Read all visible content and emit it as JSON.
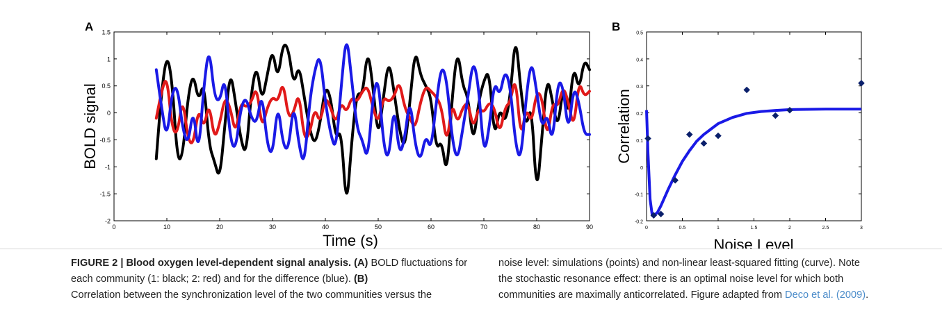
{
  "figure": {
    "panel_a_label": "A",
    "panel_b_label": "B"
  },
  "caption": {
    "fig_label": "FIGURE 2 | Blood oxygen level-dependent signal analysis.",
    "a_tag": "(A)",
    "a_text_1": " BOLD fluctuations for each community (1: black; 2: red) and for the difference (blue). ",
    "b_tag": "(B)",
    "b_text_1": " Correlation between the synchronization level of the two communities versus the",
    "right_text": "noise level: simulations (points) and non-linear least-squared fitting (curve). Note the stochastic resonance effect: there is an optimal noise level for which both communities are maximally anticorrelated. Figure adapted from ",
    "ref_link": "Deco et al. (2009)",
    "end": "."
  },
  "chart_data": [
    {
      "type": "line",
      "panel": "A",
      "xlabel": "Time (s)",
      "ylabel": "BOLD signal",
      "xlim": [
        0,
        90
      ],
      "ylim": [
        -2,
        1.5
      ],
      "xticks": [
        0,
        10,
        20,
        30,
        40,
        50,
        60,
        70,
        80,
        90
      ],
      "yticks": [
        -2,
        -1.5,
        -1,
        -0.5,
        0,
        0.5,
        1,
        1.5
      ],
      "x_range_data": [
        8,
        90
      ],
      "series": [
        {
          "color": "#000000",
          "x": [
            8,
            9,
            10,
            11,
            12,
            13,
            14,
            15,
            16,
            17,
            18,
            19,
            20,
            21,
            22,
            23,
            24,
            25,
            26,
            27,
            28,
            29,
            30,
            31,
            32,
            33,
            34,
            35,
            36,
            37,
            38,
            39,
            40,
            41,
            42,
            43,
            44,
            45,
            46,
            47,
            48,
            49,
            50,
            51,
            52,
            53,
            54,
            55,
            56,
            57,
            58,
            59,
            60,
            61,
            62,
            63,
            64,
            65,
            66,
            67,
            68,
            69,
            70,
            71,
            72,
            73,
            74,
            75,
            76,
            77,
            78,
            79,
            80,
            81,
            82,
            83,
            84,
            85,
            86,
            87,
            88,
            89,
            90
          ],
          "y": [
            -0.85,
            0.4,
            1.1,
            0.6,
            -0.9,
            -0.8,
            0.3,
            0.75,
            0.2,
            0.6,
            -0.6,
            -0.9,
            -1.25,
            -0.2,
            0.8,
            0.2,
            -0.5,
            -0.8,
            0.4,
            0.9,
            0.2,
            0.7,
            1.2,
            0.6,
            1.3,
            1.2,
            0.5,
            0.9,
            0.3,
            -0.3,
            -0.6,
            -0.2,
            0.5,
            0.3,
            -0.5,
            -0.3,
            -1.85,
            -0.5,
            0.4,
            0.3,
            1.2,
            0.5,
            -0.5,
            0.3,
            1.0,
            0.4,
            -0.3,
            -0.7,
            0.2,
            1.2,
            0.7,
            0.5,
            0.3,
            -0.7,
            -0.5,
            -1.2,
            0.3,
            1.2,
            0.5,
            0.3,
            -0.6,
            0.2,
            0.6,
            0.8,
            -0.5,
            0.1,
            -0.2,
            0.3,
            1.5,
            0.4,
            -0.3,
            0.2,
            -1.6,
            -0.4,
            0.7,
            0.2,
            -0.3,
            0.5,
            -0.1,
            0.9,
            0.4,
            1.0,
            0.8
          ]
        },
        {
          "color": "#e11a1a",
          "x": [
            8,
            9,
            10,
            11,
            12,
            13,
            14,
            15,
            16,
            17,
            18,
            19,
            20,
            21,
            22,
            23,
            24,
            25,
            26,
            27,
            28,
            29,
            30,
            31,
            32,
            33,
            34,
            35,
            36,
            37,
            38,
            39,
            40,
            41,
            42,
            43,
            44,
            45,
            46,
            47,
            48,
            49,
            50,
            51,
            52,
            53,
            54,
            55,
            56,
            57,
            58,
            59,
            60,
            61,
            62,
            63,
            64,
            65,
            66,
            67,
            68,
            69,
            70,
            71,
            72,
            73,
            74,
            75,
            76,
            77,
            78,
            79,
            80,
            81,
            82,
            83,
            84,
            85,
            86,
            87,
            88,
            89,
            90
          ],
          "y": [
            -0.1,
            0.4,
            0.7,
            -0.3,
            -0.4,
            0.3,
            -0.5,
            -0.6,
            0.1,
            -0.3,
            0.2,
            -0.5,
            -0.2,
            0.3,
            0.1,
            -0.4,
            0.2,
            0.1,
            0.2,
            0.5,
            -0.3,
            0.1,
            0.3,
            0.2,
            0.6,
            -0.1,
            0.0,
            0.4,
            -0.5,
            -0.4,
            0.1,
            -0.2,
            0.3,
            0.1,
            -0.2,
            0.2,
            0.0,
            0.3,
            0.2,
            0.4,
            0.5,
            0.1,
            -0.2,
            0.3,
            0.2,
            0.3,
            0.6,
            0.1,
            -0.1,
            -0.3,
            0.2,
            0.5,
            0.4,
            0.3,
            0.1,
            -0.6,
            0.2,
            -0.2,
            0.1,
            0.2,
            -0.3,
            0.1,
            0.0,
            0.2,
            0.1,
            -0.4,
            0.1,
            0.2,
            0.7,
            -0.5,
            0.1,
            -0.2,
            0.4,
            0.3,
            -0.5,
            0.2,
            0.1,
            0.5,
            0.2,
            -0.3,
            0.6,
            0.3,
            0.4
          ]
        },
        {
          "color": "#1a1ae6",
          "x": [
            8,
            9,
            10,
            11,
            12,
            13,
            14,
            15,
            16,
            17,
            18,
            19,
            20,
            21,
            22,
            23,
            24,
            25,
            26,
            27,
            28,
            29,
            30,
            31,
            32,
            33,
            34,
            35,
            36,
            37,
            38,
            39,
            40,
            41,
            42,
            43,
            44,
            45,
            46,
            47,
            48,
            49,
            50,
            51,
            52,
            53,
            54,
            55,
            56,
            57,
            58,
            59,
            60,
            61,
            62,
            63,
            64,
            65,
            66,
            67,
            68,
            69,
            70,
            71,
            72,
            73,
            74,
            75,
            76,
            77,
            78,
            79,
            80,
            81,
            82,
            83,
            84,
            85,
            86,
            87,
            88,
            89,
            90
          ],
          "y": [
            0.8,
            0.1,
            -0.5,
            0.4,
            0.5,
            -0.3,
            -0.6,
            0.1,
            -0.8,
            0.5,
            1.25,
            0.3,
            0.2,
            0.7,
            -0.5,
            -0.7,
            0.1,
            0.3,
            -0.1,
            -0.2,
            0.4,
            -0.6,
            -0.8,
            0.2,
            -0.6,
            -0.7,
            0.2,
            -0.6,
            -1.0,
            0.2,
            0.8,
            1.1,
            0.2,
            -0.4,
            -0.7,
            0.5,
            1.5,
            0.6,
            -0.3,
            -0.5,
            -0.9,
            0.3,
            0.7,
            -0.6,
            -0.9,
            0.2,
            -0.8,
            -0.5,
            0.3,
            -0.6,
            -0.9,
            -0.4,
            -0.7,
            0.2,
            0.9,
            0.6,
            -0.5,
            -0.9,
            -0.3,
            0.3,
            1.0,
            0.5,
            -0.8,
            -0.3,
            0.6,
            0.3,
            0.8,
            0.5,
            -0.6,
            -0.9,
            0.3,
            1.0,
            0.4,
            -0.3,
            0.0,
            -0.6,
            0.6,
            0.5,
            -0.4,
            0.5,
            0.2,
            -0.4,
            -0.4
          ]
        }
      ]
    },
    {
      "type": "scatter",
      "panel": "B",
      "xlabel": "Noise Level",
      "ylabel": "Correlation",
      "xlim": [
        0,
        3
      ],
      "ylim": [
        -0.2,
        0.5
      ],
      "xticks": [
        0,
        0.5,
        1,
        1.5,
        2,
        2.5,
        3
      ],
      "yticks": [
        -0.2,
        -0.1,
        0,
        0.1,
        0.2,
        0.3,
        0.4,
        0.5
      ],
      "points": {
        "x": [
          0.02,
          0.1,
          0.2,
          0.4,
          0.6,
          0.8,
          1.0,
          1.4,
          1.8,
          2.0,
          3.0
        ],
        "y": [
          0.105,
          -0.18,
          -0.175,
          -0.05,
          0.12,
          0.087,
          0.115,
          0.285,
          0.19,
          0.21,
          0.31
        ]
      },
      "fit_curve": {
        "x": [
          0,
          0.02,
          0.05,
          0.08,
          0.1,
          0.15,
          0.2,
          0.3,
          0.4,
          0.5,
          0.6,
          0.7,
          0.8,
          0.9,
          1.0,
          1.2,
          1.4,
          1.6,
          1.8,
          2.0,
          2.5,
          3.0
        ],
        "y": [
          0.21,
          0.05,
          -0.12,
          -0.18,
          -0.18,
          -0.17,
          -0.145,
          -0.085,
          -0.03,
          0.02,
          0.06,
          0.095,
          0.12,
          0.14,
          0.16,
          0.183,
          0.198,
          0.205,
          0.209,
          0.212,
          0.214,
          0.214
        ]
      },
      "marker_color": "#0a1f6b",
      "curve_color": "#1a1ae6"
    }
  ]
}
